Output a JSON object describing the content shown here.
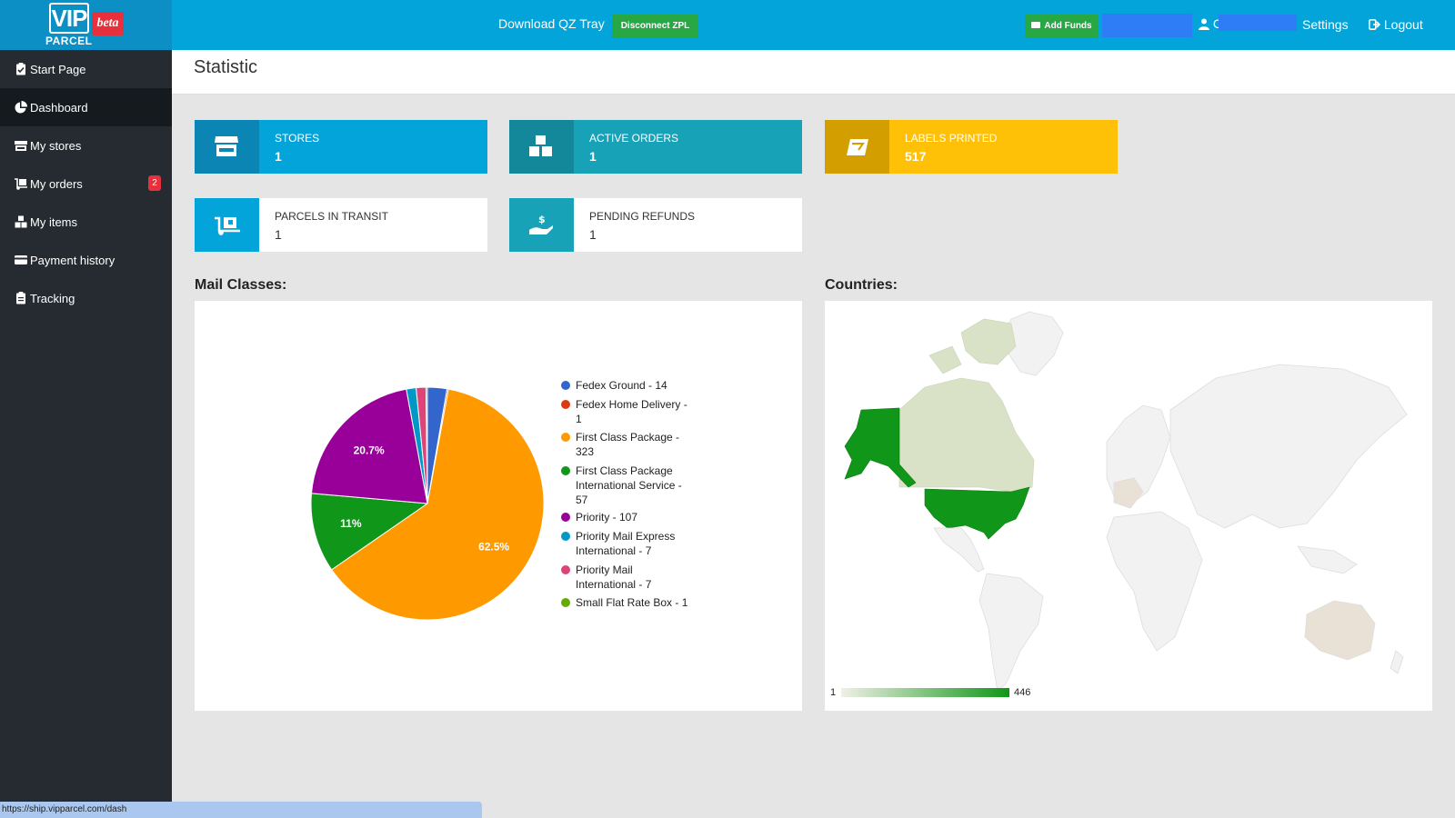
{
  "brand": {
    "logo_text": "VIP",
    "sub_text": "PARCEL",
    "beta": "beta"
  },
  "topbar": {
    "qz_tray": "Download QZ Tray",
    "disconnect_btn": "Disconnect ZPL",
    "add_funds_btn": "Add Funds",
    "user_initial": "C",
    "settings": "Settings",
    "logout": "Logout"
  },
  "sidebar": {
    "items": [
      {
        "label": "Start Page",
        "icon": "clipboard-check-icon"
      },
      {
        "label": "Dashboard",
        "icon": "pie-chart-icon",
        "active": true
      },
      {
        "label": "My stores",
        "icon": "store-icon"
      },
      {
        "label": "My orders",
        "icon": "dolly-icon",
        "badge": "2"
      },
      {
        "label": "My items",
        "icon": "boxes-icon"
      },
      {
        "label": "Payment history",
        "icon": "credit-card-icon"
      },
      {
        "label": "Tracking",
        "icon": "clipboard-list-icon"
      }
    ]
  },
  "header": {
    "title": "Statistic"
  },
  "stats": [
    {
      "name": "STORES",
      "value": "1",
      "color": "#02a4da",
      "icon": "store-icon"
    },
    {
      "name": "ACTIVE ORDERS",
      "value": "1",
      "color": "#17a2b8",
      "icon": "boxes-icon"
    },
    {
      "name": "LABELS PRINTED",
      "value": "517",
      "color": "#ffc107",
      "icon": "usps-label-icon"
    },
    {
      "name": "PARCELS IN TRANSIT",
      "value": "1",
      "color": "#02a4da",
      "icon": "dolly-icon"
    },
    {
      "name": "PENDING REFUNDS",
      "value": "1",
      "color": "#17a2b8",
      "icon": "hand-dollar-icon"
    }
  ],
  "mail_classes": {
    "title": "Mail Classes:",
    "chart_data": {
      "type": "pie",
      "categories": [
        "Fedex Ground",
        "Fedex Home Delivery",
        "First Class Package",
        "First Class Package International Service",
        "Priority",
        "Priority Mail Express International",
        "Priority Mail International",
        "Small Flat Rate Box"
      ],
      "values": [
        14,
        1,
        323,
        57,
        107,
        7,
        7,
        1
      ],
      "legend_labels": [
        "Fedex Ground - 14",
        "Fedex Home Delivery - 1",
        "First Class Package - 323",
        "First Class Package International Service - 57",
        "Priority - 107",
        "Priority Mail Express International - 7",
        "Priority Mail International - 7",
        "Small Flat Rate Box - 1"
      ],
      "colors": [
        "#3366cc",
        "#dc3912",
        "#ff9900",
        "#109618",
        "#990099",
        "#0099c6",
        "#dd4477",
        "#66aa00"
      ],
      "slice_labels": [
        "",
        "",
        "62.5%",
        "11%",
        "20.7%",
        "",
        "",
        ""
      ],
      "legend": "right"
    }
  },
  "countries": {
    "title": "Countries:",
    "scale_min": "1",
    "scale_max": "446"
  },
  "status_bar": {
    "url": "https://ship.vipparcel.com/dash"
  }
}
